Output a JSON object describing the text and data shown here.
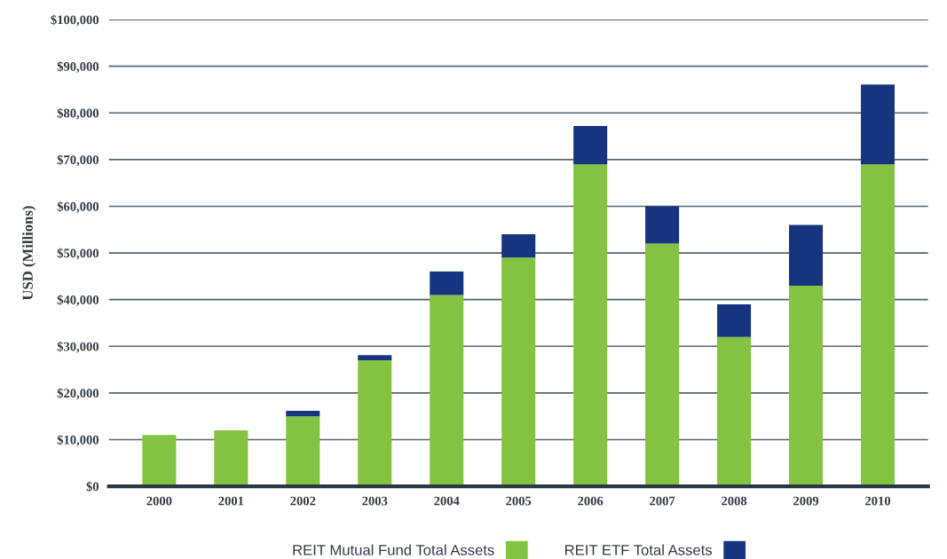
{
  "chart_data": {
    "type": "bar",
    "stacked": true,
    "ylabel": "USD (Millions)",
    "categories": [
      "2000",
      "2001",
      "2002",
      "2003",
      "2004",
      "2005",
      "2006",
      "2007",
      "2008",
      "2009",
      "2010"
    ],
    "series": [
      {
        "name": "REIT Mutual Fund Total Assets",
        "color": "#84c341",
        "values": [
          11000,
          12000,
          15000,
          27000,
          41000,
          49000,
          69000,
          52000,
          32000,
          43000,
          69000
        ]
      },
      {
        "name": "REIT ETF Total Assets",
        "color": "#17347f",
        "values": [
          0,
          0,
          1200,
          1100,
          5000,
          5000,
          8200,
          8000,
          7000,
          13000,
          17100
        ]
      }
    ],
    "ylim": [
      0,
      100000
    ],
    "yticks": [
      {
        "value": 0,
        "label": "$0"
      },
      {
        "value": 10000,
        "label": "$10,000"
      },
      {
        "value": 20000,
        "label": "$20,000"
      },
      {
        "value": 30000,
        "label": "$30,000"
      },
      {
        "value": 40000,
        "label": "$40,000"
      },
      {
        "value": 50000,
        "label": "$50,000"
      },
      {
        "value": 60000,
        "label": "$60,000"
      },
      {
        "value": 70000,
        "label": "$70,000"
      },
      {
        "value": 80000,
        "label": "$80,000"
      },
      {
        "value": 90000,
        "label": "$90,000"
      },
      {
        "value": 100000,
        "label": "$100,000"
      }
    ],
    "grid": "y",
    "legend": "bottom"
  }
}
